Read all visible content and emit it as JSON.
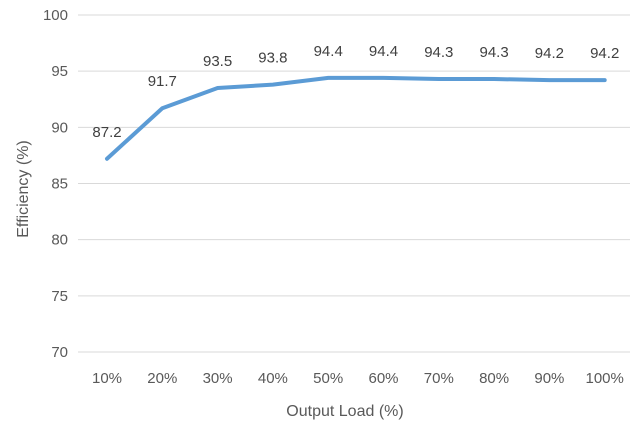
{
  "chart_data": {
    "type": "line",
    "title": "",
    "xlabel": "Output Load (%)",
    "ylabel": "Efficiency (%)",
    "categories": [
      "10%",
      "20%",
      "30%",
      "40%",
      "50%",
      "60%",
      "70%",
      "80%",
      "90%",
      "100%"
    ],
    "series": [
      {
        "values": [
          87.2,
          91.7,
          93.5,
          93.8,
          94.4,
          94.4,
          94.3,
          94.3,
          94.2,
          94.2
        ],
        "data_labels": [
          "87.2",
          "91.7",
          "93.5",
          "93.8",
          "94.4",
          "94.4",
          "94.3",
          "94.3",
          "94.2",
          "94.2"
        ],
        "color": "#5b9bd5"
      }
    ],
    "ylim": [
      70,
      100
    ],
    "yticks": [
      70,
      75,
      80,
      85,
      90,
      95,
      100
    ],
    "ytick_labels": [
      "70",
      "75",
      "80",
      "85",
      "90",
      "95",
      "100"
    ],
    "grid": true,
    "legend": "none"
  }
}
